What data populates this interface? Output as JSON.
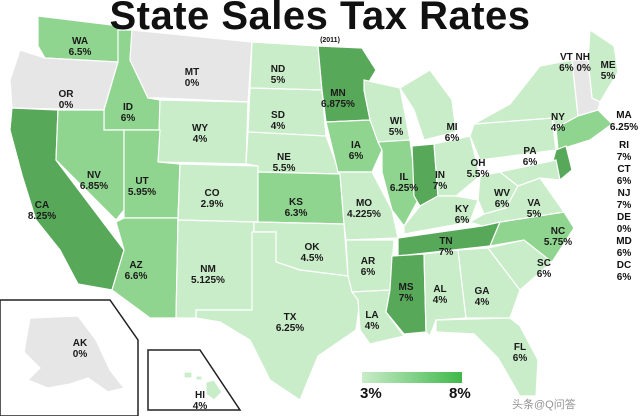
{
  "title": "State Sales Tax Rates",
  "year": "(2011)",
  "colors": {
    "zero": "#e6e6e6",
    "low": "#c9ecc9",
    "mid": "#8fd48f",
    "high": "#58a85a",
    "border": "#ffffff",
    "legend_low": "#c9ecc9",
    "legend_high": "#3fb84a"
  },
  "legend": {
    "low_label": "3%",
    "high_label": "8%"
  },
  "states": [
    {
      "abbr": "WA",
      "rate": "6.5%"
    },
    {
      "abbr": "OR",
      "rate": "0%"
    },
    {
      "abbr": "CA",
      "rate": "8.25%"
    },
    {
      "abbr": "ID",
      "rate": "6%"
    },
    {
      "abbr": "NV",
      "rate": "6.85%"
    },
    {
      "abbr": "MT",
      "rate": "0%"
    },
    {
      "abbr": "WY",
      "rate": "4%"
    },
    {
      "abbr": "UT",
      "rate": "5.95%"
    },
    {
      "abbr": "AZ",
      "rate": "6.6%"
    },
    {
      "abbr": "CO",
      "rate": "2.9%"
    },
    {
      "abbr": "NM",
      "rate": "5.125%"
    },
    {
      "abbr": "ND",
      "rate": "5%"
    },
    {
      "abbr": "SD",
      "rate": "4%"
    },
    {
      "abbr": "NE",
      "rate": "5.5%"
    },
    {
      "abbr": "KS",
      "rate": "6.3%"
    },
    {
      "abbr": "OK",
      "rate": "4.5%"
    },
    {
      "abbr": "TX",
      "rate": "6.25%"
    },
    {
      "abbr": "MN",
      "rate": "6.875%"
    },
    {
      "abbr": "IA",
      "rate": "6%"
    },
    {
      "abbr": "MO",
      "rate": "4.225%"
    },
    {
      "abbr": "AR",
      "rate": "6%"
    },
    {
      "abbr": "LA",
      "rate": "4%"
    },
    {
      "abbr": "WI",
      "rate": "5%"
    },
    {
      "abbr": "IL",
      "rate": "6.25%"
    },
    {
      "abbr": "MS",
      "rate": "7%"
    },
    {
      "abbr": "MI",
      "rate": "6%"
    },
    {
      "abbr": "IN",
      "rate": "7%"
    },
    {
      "abbr": "KY",
      "rate": "6%"
    },
    {
      "abbr": "TN",
      "rate": "7%"
    },
    {
      "abbr": "AL",
      "rate": "4%"
    },
    {
      "abbr": "OH",
      "rate": "5.5%"
    },
    {
      "abbr": "WV",
      "rate": "6%"
    },
    {
      "abbr": "GA",
      "rate": "4%"
    },
    {
      "abbr": "FL",
      "rate": "6%"
    },
    {
      "abbr": "SC",
      "rate": "6%"
    },
    {
      "abbr": "NC",
      "rate": "5.75%"
    },
    {
      "abbr": "VA",
      "rate": "5%"
    },
    {
      "abbr": "PA",
      "rate": "6%"
    },
    {
      "abbr": "NY",
      "rate": "4%"
    },
    {
      "abbr": "ME",
      "rate": "5%"
    },
    {
      "abbr": "AK",
      "rate": "0%"
    },
    {
      "abbr": "HI",
      "rate": "4%"
    }
  ],
  "vt_nh": {
    "abbr": "VT NH",
    "rate": "6% 0%"
  },
  "side_list": [
    {
      "abbr": "MA",
      "rate": "6.25%"
    },
    {
      "abbr": "RI",
      "rate": "7%"
    },
    {
      "abbr": "CT",
      "rate": "6%"
    },
    {
      "abbr": "NJ",
      "rate": "7%"
    },
    {
      "abbr": "DE",
      "rate": "0%"
    },
    {
      "abbr": "MD",
      "rate": "6%"
    },
    {
      "abbr": "DC",
      "rate": "6%"
    }
  ],
  "watermark": "头条@Q问答"
}
